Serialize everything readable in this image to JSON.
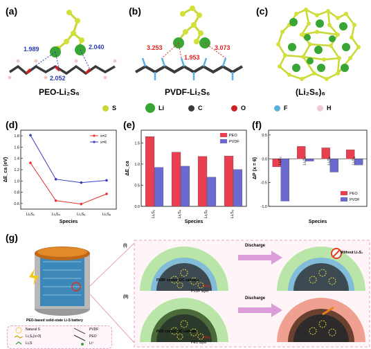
{
  "panels": {
    "a": {
      "label": "(a)",
      "title": "PEO-Li₂S₆",
      "d1": "1.989",
      "d2": "2.052",
      "d3": "2.040"
    },
    "b": {
      "label": "(b)",
      "title": "PVDF-Li₂S₆",
      "d1": "3.253",
      "d2": "1.953",
      "d3": "3.073"
    },
    "c": {
      "label": "(c)",
      "title": "(Li₂S₆)₆"
    },
    "d": {
      "label": "(d)"
    },
    "e": {
      "label": "(e)"
    },
    "f": {
      "label": "(f)"
    },
    "g": {
      "label": "(g)"
    }
  },
  "atom_legend": [
    {
      "sym": "S",
      "color": "#c8d832"
    },
    {
      "sym": "Li",
      "color": "#39a535"
    },
    {
      "sym": "C",
      "color": "#3a3a3a"
    },
    {
      "sym": "O",
      "color": "#cc2020"
    },
    {
      "sym": "F",
      "color": "#5ab0e0"
    },
    {
      "sym": "H",
      "color": "#f0c8d0"
    }
  ],
  "chart_data": [
    {
      "type": "line",
      "id": "d",
      "categories": [
        "Li₂S₂",
        "Li₂S₄",
        "Li₂S₆",
        "Li₂S₈"
      ],
      "series": [
        {
          "name": "x=2",
          "color": "#e83030",
          "values": [
            1.32,
            0.65,
            0.59,
            0.77
          ]
        },
        {
          "name": "x=6",
          "color": "#3a3ac0",
          "values": [
            1.81,
            1.03,
            0.97,
            1.01
          ]
        }
      ],
      "xlabel": "Species",
      "ylabel": "ΔE_ca (eV)",
      "ylim": [
        0.5,
        1.9
      ],
      "yticks": [
        "0.6",
        "0.8",
        "1.0",
        "1.2",
        "1.4",
        "1.6",
        "1.8"
      ],
      "legend": "top-right"
    },
    {
      "type": "bar",
      "id": "e",
      "categories": [
        "Li₂S₂",
        "Li₂S₄",
        "Li₂S₆",
        "Li₂S₈"
      ],
      "series": [
        {
          "name": "PEO",
          "color": "#e84050",
          "values": [
            1.65,
            1.28,
            1.18,
            1.19
          ]
        },
        {
          "name": "PVDF",
          "color": "#6a6ad0",
          "values": [
            0.92,
            0.95,
            0.69,
            0.87
          ]
        }
      ],
      "xlabel": "Species",
      "ylabel": "ΔE_ca",
      "ylim": [
        0,
        1.8
      ],
      "yticks": [
        "0.0",
        "0.5",
        "1.0",
        "1.5"
      ],
      "legend": "top-right"
    },
    {
      "type": "bar",
      "id": "f",
      "categories": [
        "Li₂S₂",
        "Li₂S₄",
        "Li₂S₆",
        "Li₂S₈"
      ],
      "series": [
        {
          "name": "PEO",
          "color": "#e84050",
          "values": [
            -0.17,
            0.26,
            0.23,
            0.19
          ]
        },
        {
          "name": "PVDF",
          "color": "#6a6ad0",
          "values": [
            -0.89,
            -0.05,
            -0.28,
            -0.13
          ]
        }
      ],
      "xlabel": "Species",
      "ylabel": "ΔP (x = 6)",
      "ylim": [
        -1.0,
        0.6
      ],
      "yticks": [
        "-1.0",
        "-0.5",
        "0.0",
        "0.5"
      ],
      "legend": "bottom-right"
    }
  ],
  "g": {
    "battery_caption": "PEO-based solid-state Li-S battery",
    "legend": {
      "natural_s": "Natural S",
      "li2sx": "Li₂Sₓ(x>3)",
      "li2s": "Li₂S",
      "pvdf": "PVDF",
      "peo": "PEO",
      "li": "Li⁺"
    },
    "row1": {
      "roman": "(I)",
      "cathode": "PVDF coated S/C cathode",
      "layer": "PVDF layer",
      "cpe": "CPEs",
      "discharge": "Discharge",
      "without": "Without Li₂S₄"
    },
    "row2": {
      "roman": "(II)",
      "cathode": "PEO coated S/C cathode",
      "layer": "PEO layer",
      "cpe": "CPEs",
      "discharge": "Discharge"
    }
  }
}
